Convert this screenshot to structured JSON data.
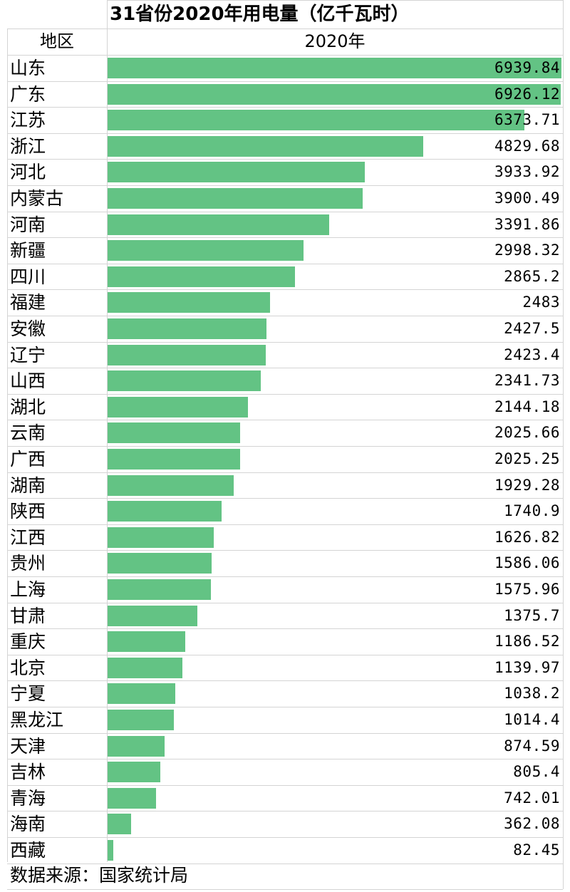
{
  "title": "31省份2020年用电量（亿千瓦时）",
  "header": {
    "region_label": "地区",
    "year_label": "2020年"
  },
  "source": "数据来源：国家统计局",
  "colors": {
    "bar": "#63c384",
    "grid": "#d4d4d4"
  },
  "chart_data": {
    "type": "bar",
    "orientation": "horizontal",
    "title": "31省份2020年用电量（亿千瓦时）",
    "series": [
      {
        "name": "2020年",
        "values": [
          6939.84,
          6926.12,
          6373.71,
          4829.68,
          3933.92,
          3900.49,
          3391.86,
          2998.32,
          2865.2,
          2483,
          2427.5,
          2423.4,
          2341.73,
          2144.18,
          2025.66,
          2025.25,
          1929.28,
          1740.9,
          1626.82,
          1586.06,
          1575.96,
          1375.7,
          1186.52,
          1139.97,
          1038.2,
          1014.4,
          874.59,
          805.4,
          742.01,
          362.08,
          82.45
        ]
      }
    ],
    "categories": [
      "山东",
      "广东",
      "江苏",
      "浙江",
      "河北",
      "内蒙古",
      "河南",
      "新疆",
      "四川",
      "福建",
      "安徽",
      "辽宁",
      "山西",
      "湖北",
      "云南",
      "广西",
      "湖南",
      "陕西",
      "江西",
      "贵州",
      "上海",
      "甘肃",
      "重庆",
      "北京",
      "宁夏",
      "黑龙江",
      "天津",
      "吉林",
      "青海",
      "海南",
      "西藏"
    ],
    "value_labels": [
      "6939.84",
      "6926.12",
      "6373.71",
      "4829.68",
      "3933.92",
      "3900.49",
      "3391.86",
      "2998.32",
      "2865.2",
      "2483",
      "2427.5",
      "2423.4",
      "2341.73",
      "2144.18",
      "2025.66",
      "2025.25",
      "1929.28",
      "1740.9",
      "1626.82",
      "1586.06",
      "1575.96",
      "1375.7",
      "1186.52",
      "1139.97",
      "1038.2",
      "1014.4",
      "874.59",
      "805.4",
      "742.01",
      "362.08",
      "82.45"
    ],
    "xlim": [
      0,
      6939.84
    ],
    "grid": true
  }
}
